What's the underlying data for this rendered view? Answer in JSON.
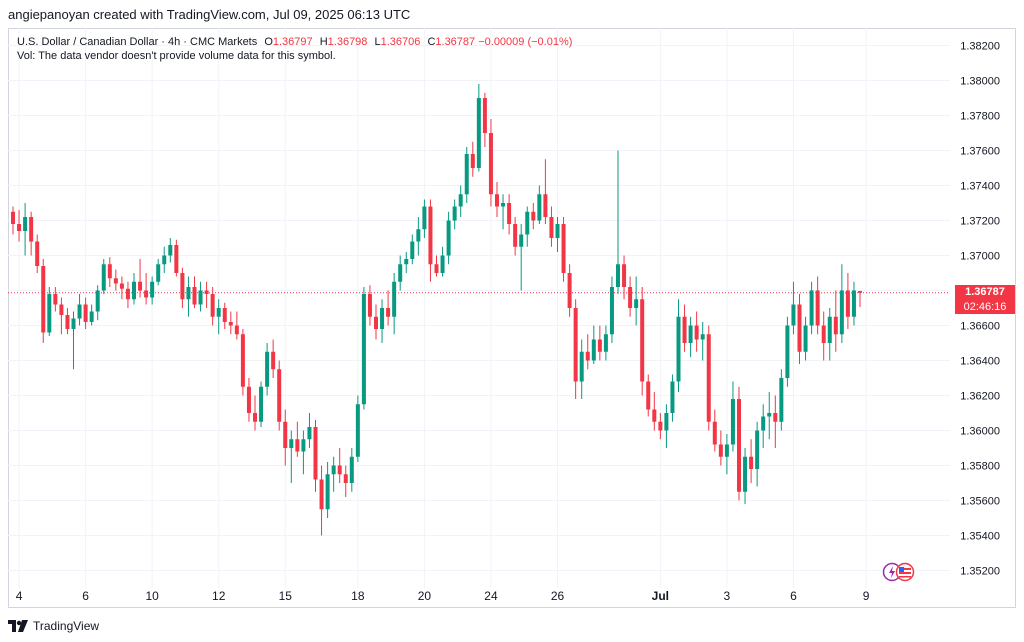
{
  "attribution": "angiepanoyan created with TradingView.com, Jul 09, 2025 06:13 UTC",
  "legend": {
    "symbol": "U.S. Dollar / Canadian Dollar · 4h · CMC Markets",
    "o_label": "O",
    "o_value": "1.36797",
    "h_label": "H",
    "h_value": "1.36798",
    "l_label": "L",
    "l_value": "1.36706",
    "c_label": "C",
    "c_value": "1.36787",
    "change": "−0.00009 (−0.01%)",
    "vol_note": "Vol: The data vendor doesn't provide volume data for this symbol."
  },
  "price_tag": {
    "price": "1.36787",
    "countdown": "02:46:16"
  },
  "footer": {
    "brand": "TradingView"
  },
  "colors": {
    "up": "#089981",
    "down": "#f23645",
    "grid": "#f0f3fa",
    "text": "#131722"
  },
  "chart_data": {
    "type": "candlestick",
    "title": "U.S. Dollar / Canadian Dollar · 4h · CMC Markets",
    "ylim": [
      1.351,
      1.383
    ],
    "y_ticks": [
      "1.38200",
      "1.38000",
      "1.37800",
      "1.37600",
      "1.37400",
      "1.37200",
      "1.37000",
      "1.36800",
      "1.36600",
      "1.36400",
      "1.36200",
      "1.36000",
      "1.35800",
      "1.35600",
      "1.35400",
      "1.35200"
    ],
    "x_ticks": [
      {
        "label": "4",
        "i": 1
      },
      {
        "label": "6",
        "i": 12
      },
      {
        "label": "10",
        "i": 23
      },
      {
        "label": "12",
        "i": 34
      },
      {
        "label": "15",
        "i": 45
      },
      {
        "label": "18",
        "i": 57
      },
      {
        "label": "20",
        "i": 68
      },
      {
        "label": "24",
        "i": 79
      },
      {
        "label": "26",
        "i": 90
      },
      {
        "label": "Jul",
        "i": 107
      },
      {
        "label": "3",
        "i": 118
      },
      {
        "label": "6",
        "i": 129
      },
      {
        "label": "9",
        "i": 141
      }
    ],
    "last_price": 1.36787,
    "candles": [
      [
        1.3725,
        1.3728,
        1.3712,
        1.3718
      ],
      [
        1.3718,
        1.3726,
        1.3708,
        1.3714
      ],
      [
        1.3714,
        1.373,
        1.37,
        1.3722
      ],
      [
        1.3722,
        1.3725,
        1.37,
        1.3708
      ],
      [
        1.3708,
        1.3712,
        1.369,
        1.3694
      ],
      [
        1.3694,
        1.3698,
        1.365,
        1.3656
      ],
      [
        1.3656,
        1.3682,
        1.3654,
        1.3678
      ],
      [
        1.3678,
        1.3682,
        1.3668,
        1.3672
      ],
      [
        1.3672,
        1.3676,
        1.3655,
        1.3666
      ],
      [
        1.3666,
        1.367,
        1.3655,
        1.3658
      ],
      [
        1.3658,
        1.3668,
        1.3635,
        1.3664
      ],
      [
        1.3664,
        1.3678,
        1.366,
        1.3672
      ],
      [
        1.3672,
        1.3676,
        1.3658,
        1.3662
      ],
      [
        1.3662,
        1.3672,
        1.366,
        1.3668
      ],
      [
        1.3668,
        1.3683,
        1.3663,
        1.368
      ],
      [
        1.368,
        1.3698,
        1.3678,
        1.3695
      ],
      [
        1.3695,
        1.3699,
        1.3682,
        1.3687
      ],
      [
        1.3687,
        1.3692,
        1.368,
        1.3684
      ],
      [
        1.3684,
        1.3688,
        1.3675,
        1.3681
      ],
      [
        1.3681,
        1.3685,
        1.367,
        1.3675
      ],
      [
        1.3675,
        1.369,
        1.3672,
        1.3685
      ],
      [
        1.3685,
        1.3698,
        1.3676,
        1.368
      ],
      [
        1.368,
        1.369,
        1.3672,
        1.3676
      ],
      [
        1.3676,
        1.3688,
        1.3672,
        1.3685
      ],
      [
        1.3685,
        1.3698,
        1.3683,
        1.3695
      ],
      [
        1.3695,
        1.3705,
        1.369,
        1.37
      ],
      [
        1.37,
        1.371,
        1.3696,
        1.3706
      ],
      [
        1.3706,
        1.3709,
        1.3688,
        1.369
      ],
      [
        1.369,
        1.3693,
        1.367,
        1.3675
      ],
      [
        1.3675,
        1.3688,
        1.3665,
        1.3682
      ],
      [
        1.3682,
        1.3688,
        1.367,
        1.3672
      ],
      [
        1.3672,
        1.3685,
        1.3668,
        1.368
      ],
      [
        1.368,
        1.3685,
        1.367,
        1.3678
      ],
      [
        1.3678,
        1.3682,
        1.366,
        1.3665
      ],
      [
        1.3665,
        1.3675,
        1.3655,
        1.367
      ],
      [
        1.367,
        1.3673,
        1.3658,
        1.3662
      ],
      [
        1.3662,
        1.3668,
        1.3655,
        1.366
      ],
      [
        1.366,
        1.3668,
        1.3652,
        1.3655
      ],
      [
        1.3655,
        1.3658,
        1.362,
        1.3625
      ],
      [
        1.3625,
        1.363,
        1.3605,
        1.361
      ],
      [
        1.361,
        1.362,
        1.36,
        1.3605
      ],
      [
        1.3605,
        1.3628,
        1.3602,
        1.3625
      ],
      [
        1.3625,
        1.365,
        1.362,
        1.3645
      ],
      [
        1.3645,
        1.3652,
        1.363,
        1.3635
      ],
      [
        1.3635,
        1.364,
        1.36,
        1.3605
      ],
      [
        1.3605,
        1.3612,
        1.358,
        1.359
      ],
      [
        1.359,
        1.36,
        1.357,
        1.3595
      ],
      [
        1.3595,
        1.3605,
        1.3585,
        1.3588
      ],
      [
        1.3588,
        1.36,
        1.3575,
        1.3595
      ],
      [
        1.3595,
        1.361,
        1.359,
        1.3602
      ],
      [
        1.3602,
        1.3606,
        1.3565,
        1.3572
      ],
      [
        1.3572,
        1.358,
        1.354,
        1.3555
      ],
      [
        1.3555,
        1.3582,
        1.355,
        1.3575
      ],
      [
        1.3575,
        1.3585,
        1.3565,
        1.358
      ],
      [
        1.358,
        1.359,
        1.357,
        1.3575
      ],
      [
        1.3575,
        1.358,
        1.3562,
        1.357
      ],
      [
        1.357,
        1.359,
        1.3565,
        1.3585
      ],
      [
        1.3585,
        1.362,
        1.3582,
        1.3615
      ],
      [
        1.3615,
        1.3682,
        1.3612,
        1.3678
      ],
      [
        1.3678,
        1.3683,
        1.366,
        1.3665
      ],
      [
        1.3665,
        1.3672,
        1.3652,
        1.3658
      ],
      [
        1.3658,
        1.3675,
        1.365,
        1.367
      ],
      [
        1.367,
        1.368,
        1.366,
        1.3665
      ],
      [
        1.3665,
        1.369,
        1.3655,
        1.3685
      ],
      [
        1.3685,
        1.37,
        1.368,
        1.3695
      ],
      [
        1.3695,
        1.3702,
        1.369,
        1.3698
      ],
      [
        1.3698,
        1.3712,
        1.3695,
        1.3708
      ],
      [
        1.3708,
        1.3722,
        1.37,
        1.3715
      ],
      [
        1.3715,
        1.3732,
        1.371,
        1.3728
      ],
      [
        1.3728,
        1.3732,
        1.3685,
        1.3695
      ],
      [
        1.3695,
        1.37,
        1.3688,
        1.369
      ],
      [
        1.369,
        1.3705,
        1.3688,
        1.37
      ],
      [
        1.37,
        1.3725,
        1.3695,
        1.372
      ],
      [
        1.372,
        1.3732,
        1.3715,
        1.3728
      ],
      [
        1.3728,
        1.374,
        1.3722,
        1.3735
      ],
      [
        1.3735,
        1.3762,
        1.373,
        1.3758
      ],
      [
        1.3758,
        1.3765,
        1.3745,
        1.375
      ],
      [
        1.375,
        1.3798,
        1.3748,
        1.379
      ],
      [
        1.379,
        1.3793,
        1.3762,
        1.377
      ],
      [
        1.377,
        1.3778,
        1.3728,
        1.3735
      ],
      [
        1.3735,
        1.3742,
        1.3722,
        1.3728
      ],
      [
        1.3728,
        1.3735,
        1.3715,
        1.373
      ],
      [
        1.373,
        1.3735,
        1.3712,
        1.3718
      ],
      [
        1.3718,
        1.3722,
        1.37,
        1.3705
      ],
      [
        1.3705,
        1.3718,
        1.368,
        1.3712
      ],
      [
        1.3712,
        1.3728,
        1.3705,
        1.3725
      ],
      [
        1.3725,
        1.373,
        1.3715,
        1.372
      ],
      [
        1.372,
        1.374,
        1.3718,
        1.3735
      ],
      [
        1.3735,
        1.3755,
        1.3718,
        1.3722
      ],
      [
        1.3722,
        1.3728,
        1.3705,
        1.371
      ],
      [
        1.371,
        1.3722,
        1.3702,
        1.3718
      ],
      [
        1.3718,
        1.3722,
        1.3685,
        1.369
      ],
      [
        1.369,
        1.3695,
        1.3665,
        1.367
      ],
      [
        1.367,
        1.3675,
        1.3618,
        1.3628
      ],
      [
        1.3628,
        1.3652,
        1.3618,
        1.3645
      ],
      [
        1.3645,
        1.3655,
        1.3635,
        1.364
      ],
      [
        1.364,
        1.366,
        1.3638,
        1.3652
      ],
      [
        1.3652,
        1.366,
        1.364,
        1.3645
      ],
      [
        1.3645,
        1.366,
        1.364,
        1.3655
      ],
      [
        1.3655,
        1.3688,
        1.365,
        1.3682
      ],
      [
        1.3682,
        1.376,
        1.3678,
        1.3695
      ],
      [
        1.3695,
        1.37,
        1.3675,
        1.3682
      ],
      [
        1.3682,
        1.3688,
        1.3665,
        1.367
      ],
      [
        1.367,
        1.3688,
        1.366,
        1.3675
      ],
      [
        1.3675,
        1.3682,
        1.362,
        1.3628
      ],
      [
        1.3628,
        1.3632,
        1.3608,
        1.3612
      ],
      [
        1.3612,
        1.3622,
        1.36,
        1.3605
      ],
      [
        1.3605,
        1.361,
        1.3595,
        1.36
      ],
      [
        1.36,
        1.3615,
        1.359,
        1.361
      ],
      [
        1.361,
        1.3632,
        1.3605,
        1.3628
      ],
      [
        1.3628,
        1.3675,
        1.3622,
        1.3665
      ],
      [
        1.3665,
        1.3672,
        1.3645,
        1.365
      ],
      [
        1.365,
        1.3665,
        1.3642,
        1.366
      ],
      [
        1.366,
        1.3668,
        1.3645,
        1.3652
      ],
      [
        1.3652,
        1.3662,
        1.364,
        1.3655
      ],
      [
        1.3655,
        1.366,
        1.36,
        1.3605
      ],
      [
        1.3605,
        1.3612,
        1.3588,
        1.3592
      ],
      [
        1.3592,
        1.36,
        1.358,
        1.3585
      ],
      [
        1.3585,
        1.3598,
        1.3575,
        1.3592
      ],
      [
        1.3592,
        1.3628,
        1.3588,
        1.3618
      ],
      [
        1.3618,
        1.3625,
        1.356,
        1.3565
      ],
      [
        1.3565,
        1.359,
        1.3558,
        1.3585
      ],
      [
        1.3585,
        1.3595,
        1.357,
        1.3578
      ],
      [
        1.3578,
        1.3605,
        1.3568,
        1.36
      ],
      [
        1.36,
        1.3615,
        1.359,
        1.3608
      ],
      [
        1.3608,
        1.3622,
        1.3595,
        1.361
      ],
      [
        1.361,
        1.362,
        1.359,
        1.3605
      ],
      [
        1.3605,
        1.3635,
        1.36,
        1.363
      ],
      [
        1.363,
        1.3665,
        1.3625,
        1.366
      ],
      [
        1.366,
        1.3685,
        1.3655,
        1.3672
      ],
      [
        1.3672,
        1.3678,
        1.3638,
        1.3645
      ],
      [
        1.3645,
        1.3665,
        1.364,
        1.366
      ],
      [
        1.366,
        1.3685,
        1.3655,
        1.368
      ],
      [
        1.368,
        1.3688,
        1.3655,
        1.366
      ],
      [
        1.366,
        1.3668,
        1.364,
        1.365
      ],
      [
        1.365,
        1.367,
        1.364,
        1.3665
      ],
      [
        1.3665,
        1.368,
        1.3645,
        1.3655
      ],
      [
        1.3655,
        1.3695,
        1.365,
        1.368
      ],
      [
        1.368,
        1.369,
        1.3658,
        1.3665
      ],
      [
        1.3665,
        1.3685,
        1.366,
        1.368
      ],
      [
        1.36797,
        1.36798,
        1.36706,
        1.36787
      ]
    ]
  }
}
